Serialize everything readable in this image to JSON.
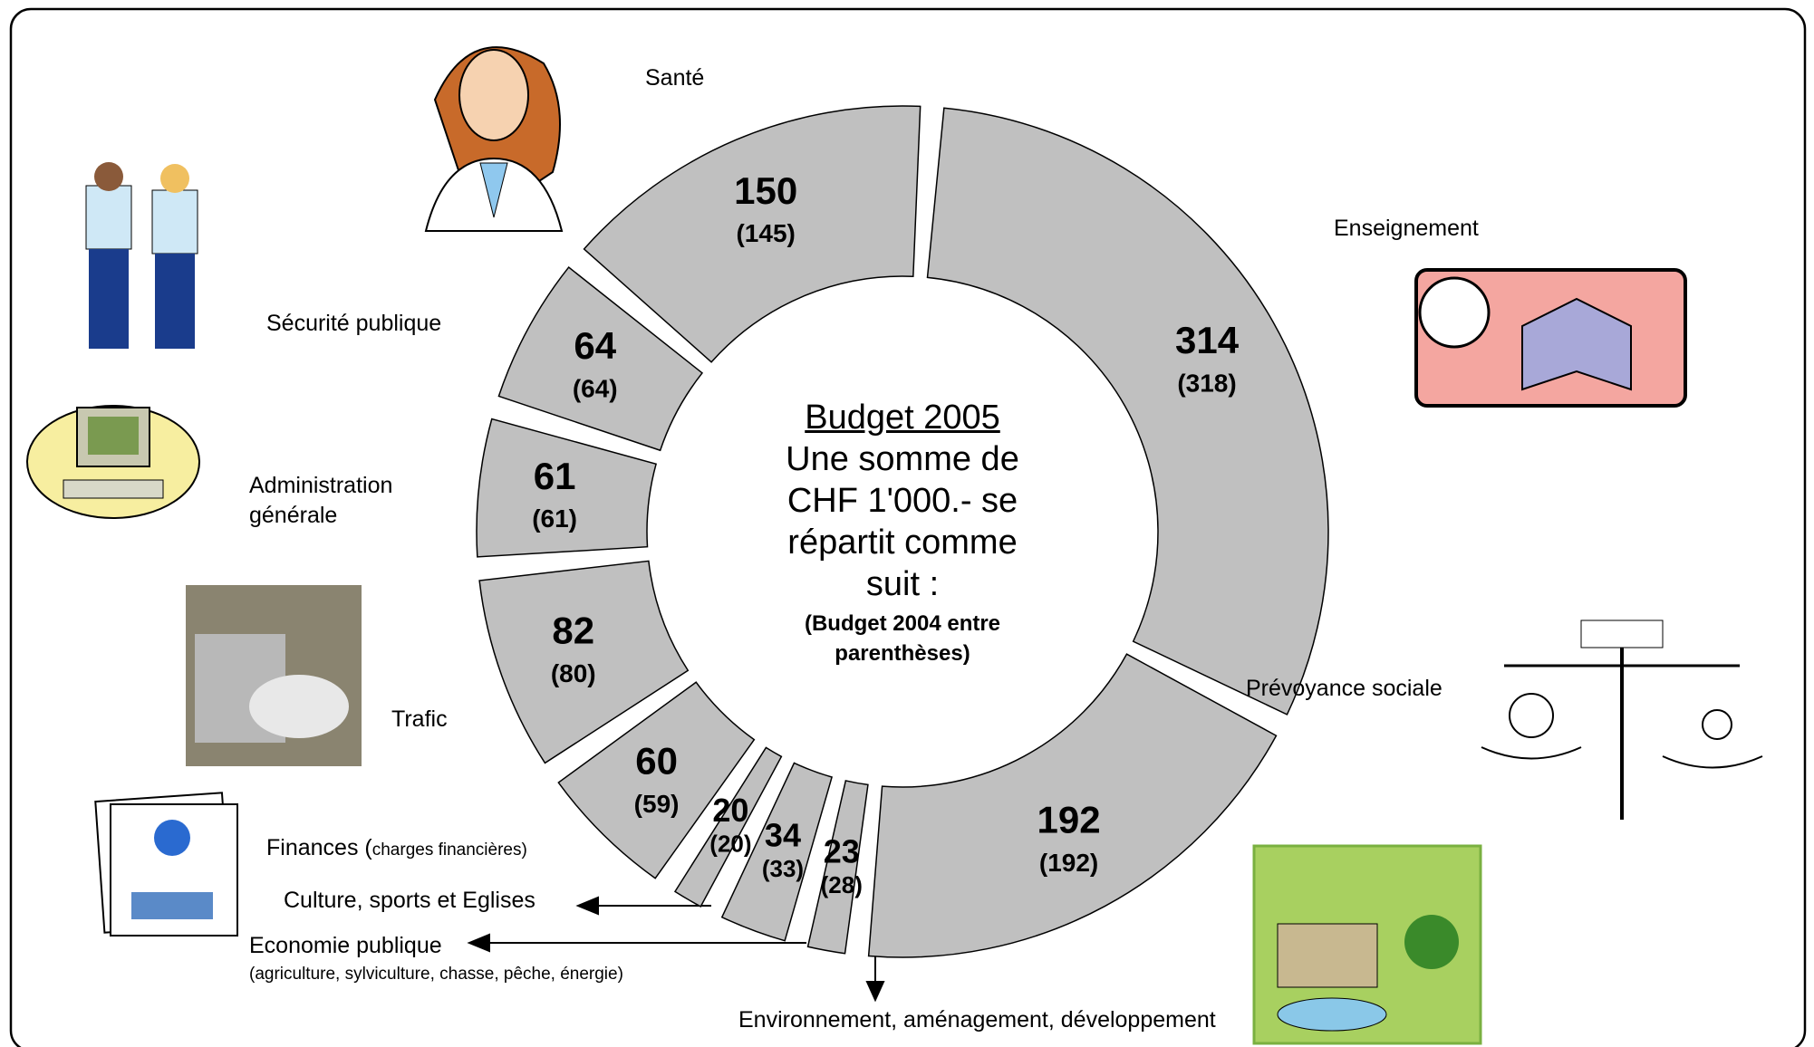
{
  "chart_data": {
    "type": "donut",
    "title": "Budget 2005",
    "subtitle": "Une somme de CHF 1'000.- se répartit comme suit :",
    "note": "(Budget 2004 entre parenthèses)",
    "categories": [
      "Enseignement",
      "Prévoyance sociale",
      "Environnement, aménagement, développement",
      "Economie publique",
      "Culture, sports et Eglises",
      "Finances",
      "Trafic",
      "Administration générale",
      "Sécurité publique",
      "Santé"
    ],
    "category_notes": [
      null,
      null,
      null,
      "(agriculture, sylviculture, chasse, pêche, énergie)",
      null,
      "charges financières)",
      null,
      null,
      null,
      null
    ],
    "values": [
      314,
      192,
      23,
      34,
      20,
      60,
      82,
      61,
      64,
      150
    ],
    "previous_values": [
      318,
      192,
      28,
      33,
      20,
      59,
      80,
      61,
      64,
      145
    ],
    "previous_value_labels": [
      "(318)",
      "(192)",
      "(28)",
      "(33)",
      "(20)",
      "(59)",
      "(80)",
      "(61)",
      "(64)",
      "(145)"
    ],
    "color": "#c0c0c0"
  }
}
